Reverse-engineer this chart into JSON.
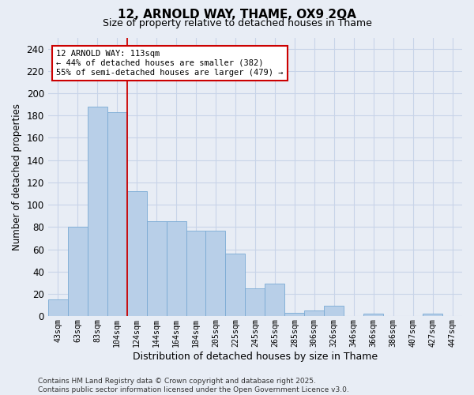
{
  "title1": "12, ARNOLD WAY, THAME, OX9 2QA",
  "title2": "Size of property relative to detached houses in Thame",
  "xlabel": "Distribution of detached houses by size in Thame",
  "ylabel": "Number of detached properties",
  "categories": [
    "43sqm",
    "63sqm",
    "83sqm",
    "104sqm",
    "124sqm",
    "144sqm",
    "164sqm",
    "184sqm",
    "205sqm",
    "225sqm",
    "245sqm",
    "265sqm",
    "285sqm",
    "306sqm",
    "326sqm",
    "346sqm",
    "366sqm",
    "386sqm",
    "407sqm",
    "427sqm",
    "447sqm"
  ],
  "values": [
    15,
    80,
    188,
    183,
    112,
    85,
    85,
    77,
    77,
    56,
    25,
    29,
    3,
    5,
    9,
    0,
    2,
    0,
    0,
    2,
    0
  ],
  "bar_color": "#b8cfe8",
  "bar_edge_color": "#7aaad4",
  "red_line_x": 3.5,
  "annotation_text": "12 ARNOLD WAY: 113sqm\n← 44% of detached houses are smaller (382)\n55% of semi-detached houses are larger (479) →",
  "annotation_box_color": "white",
  "annotation_box_edge": "#cc0000",
  "grid_color": "#c8d4e8",
  "bg_color": "#e8edf5",
  "footer": "Contains HM Land Registry data © Crown copyright and database right 2025.\nContains public sector information licensed under the Open Government Licence v3.0.",
  "ylim": [
    0,
    250
  ],
  "yticks": [
    0,
    20,
    40,
    60,
    80,
    100,
    120,
    140,
    160,
    180,
    200,
    220,
    240
  ]
}
